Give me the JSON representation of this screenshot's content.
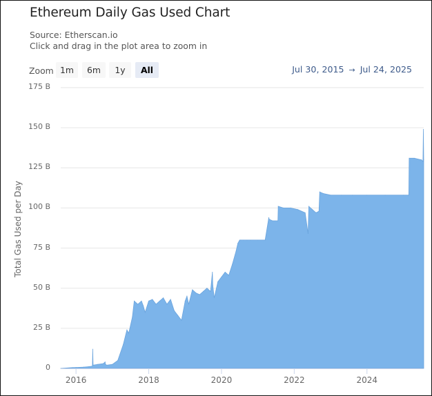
{
  "header": {
    "title": "Ethereum Daily Gas Used Chart",
    "source": "Source: Etherscan.io",
    "hint": "Click and drag in the plot area to zoom in"
  },
  "zoom": {
    "label": "Zoom",
    "buttons": [
      "1m",
      "6m",
      "1y",
      "All"
    ],
    "active": "All"
  },
  "range": {
    "from": "Jul 30, 2015",
    "arrow": "→",
    "to": "Jul 24, 2025"
  },
  "colors": {
    "fill": "#7cb4ea",
    "line": "#6ba4dd",
    "grid": "#e6e6e6"
  },
  "chart_data": {
    "type": "area",
    "title": "Ethereum Daily Gas Used Chart",
    "xlabel": "",
    "ylabel": "Total Gas Used per Day",
    "ylim": [
      0,
      175
    ],
    "xlim": [
      2015.58,
      2025.56
    ],
    "yunit": "B",
    "y_ticks": [
      0,
      25,
      50,
      75,
      100,
      125,
      150,
      175
    ],
    "y_tick_labels": [
      "0",
      "25 B",
      "50 B",
      "75 B",
      "100 B",
      "125 B",
      "150 B",
      "175 B"
    ],
    "x_ticks": [
      2016,
      2018,
      2020,
      2022,
      2024
    ],
    "x_tick_labels": [
      "2016",
      "2018",
      "2020",
      "2022",
      "2024"
    ],
    "grid": true,
    "legend": "none",
    "series": [
      {
        "name": "Total Gas Used per Day",
        "x": [
          2015.58,
          2015.9,
          2016.0,
          2016.2,
          2016.4,
          2016.45,
          2016.46,
          2016.47,
          2016.6,
          2016.75,
          2016.8,
          2016.81,
          2016.85,
          2017.0,
          2017.15,
          2017.3,
          2017.4,
          2017.45,
          2017.55,
          2017.6,
          2017.7,
          2017.8,
          2017.85,
          2017.9,
          2018.0,
          2018.1,
          2018.2,
          2018.3,
          2018.4,
          2018.5,
          2018.6,
          2018.7,
          2018.8,
          2018.9,
          2019.0,
          2019.05,
          2019.1,
          2019.2,
          2019.3,
          2019.4,
          2019.5,
          2019.6,
          2019.7,
          2019.75,
          2019.76,
          2019.8,
          2019.9,
          2020.0,
          2020.1,
          2020.2,
          2020.3,
          2020.4,
          2020.45,
          2020.5,
          2020.6,
          2020.7,
          2020.8,
          2021.0,
          2021.2,
          2021.3,
          2021.31,
          2021.4,
          2021.55,
          2021.56,
          2021.7,
          2021.9,
          2022.1,
          2022.3,
          2022.38,
          2022.4,
          2022.5,
          2022.6,
          2022.68,
          2022.7,
          2022.8,
          2023.0,
          2023.3,
          2023.6,
          2024.0,
          2024.5,
          2025.0,
          2025.15,
          2025.16,
          2025.3,
          2025.5,
          2025.54,
          2025.55,
          2025.56
        ],
        "y": [
          0,
          0.5,
          0.6,
          0.8,
          1.2,
          1.5,
          12,
          2,
          2.5,
          3,
          4,
          2.5,
          2,
          2.5,
          5,
          15,
          24,
          22,
          32,
          42,
          40,
          42,
          39,
          35,
          42,
          43,
          40,
          42,
          44,
          40,
          43,
          36,
          33,
          30,
          42,
          45,
          40,
          49,
          47,
          46,
          48,
          50,
          48,
          60,
          52,
          44,
          54,
          57,
          60,
          58,
          65,
          73,
          78,
          80,
          80,
          80,
          80,
          80,
          80,
          94,
          93,
          92,
          92,
          101,
          100,
          100,
          99,
          97,
          84,
          101,
          99,
          97,
          98,
          110,
          109,
          108,
          108,
          108,
          108,
          108,
          108,
          108,
          131,
          131,
          130,
          129,
          149,
          130
        ]
      }
    ]
  }
}
